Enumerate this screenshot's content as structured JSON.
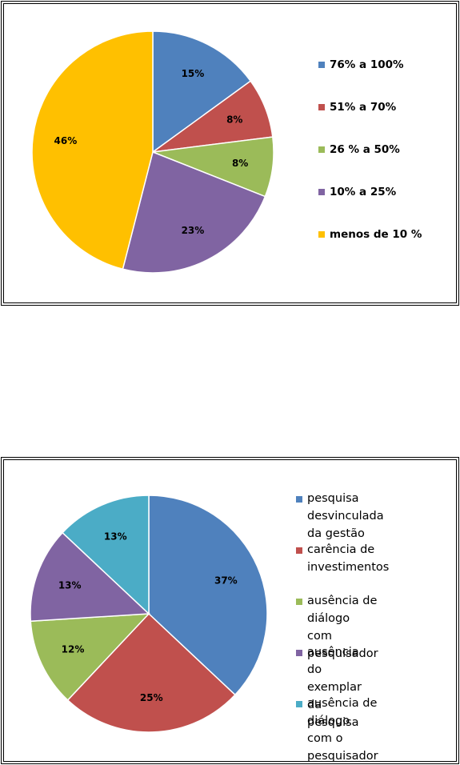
{
  "chart_data": [
    {
      "type": "pie",
      "title": "",
      "slices": [
        {
          "label": "76% a 100%",
          "value": 15,
          "display": "15%",
          "color": "#4F81BD"
        },
        {
          "label": "51% a 70%",
          "value": 8,
          "display": "8%",
          "color": "#C0504D"
        },
        {
          "label": "26 % a 50%",
          "value": 8,
          "display": "8%",
          "color": "#9BBB59"
        },
        {
          "label": "10% a 25%",
          "value": 23,
          "display": "23%",
          "color": "#8064A2"
        },
        {
          "label": "menos de 10 %",
          "value": 46,
          "display": "46%",
          "color": "#FFC000"
        }
      ],
      "legend_position": "right"
    },
    {
      "type": "pie",
      "title": "",
      "slices": [
        {
          "label": "pesquisa desvinculada\nda gestão",
          "value": 37,
          "display": "37%",
          "color": "#4F81BD"
        },
        {
          "label": "carência de\ninvestimentos",
          "value": 25,
          "display": "25%",
          "color": "#C0504D"
        },
        {
          "label": "ausência de diálogo\ncom pesquisador",
          "value": 12,
          "display": "12%",
          "color": "#9BBB59"
        },
        {
          "label": "ausência do exemplar\nda  pesquisa",
          "value": 13,
          "display": "13%",
          "color": "#8064A2"
        },
        {
          "label": "ausência de diálogo\ncom o pesquisador",
          "value": 13,
          "display": "13%",
          "color": "#4BACC6"
        }
      ],
      "legend_position": "right"
    }
  ]
}
